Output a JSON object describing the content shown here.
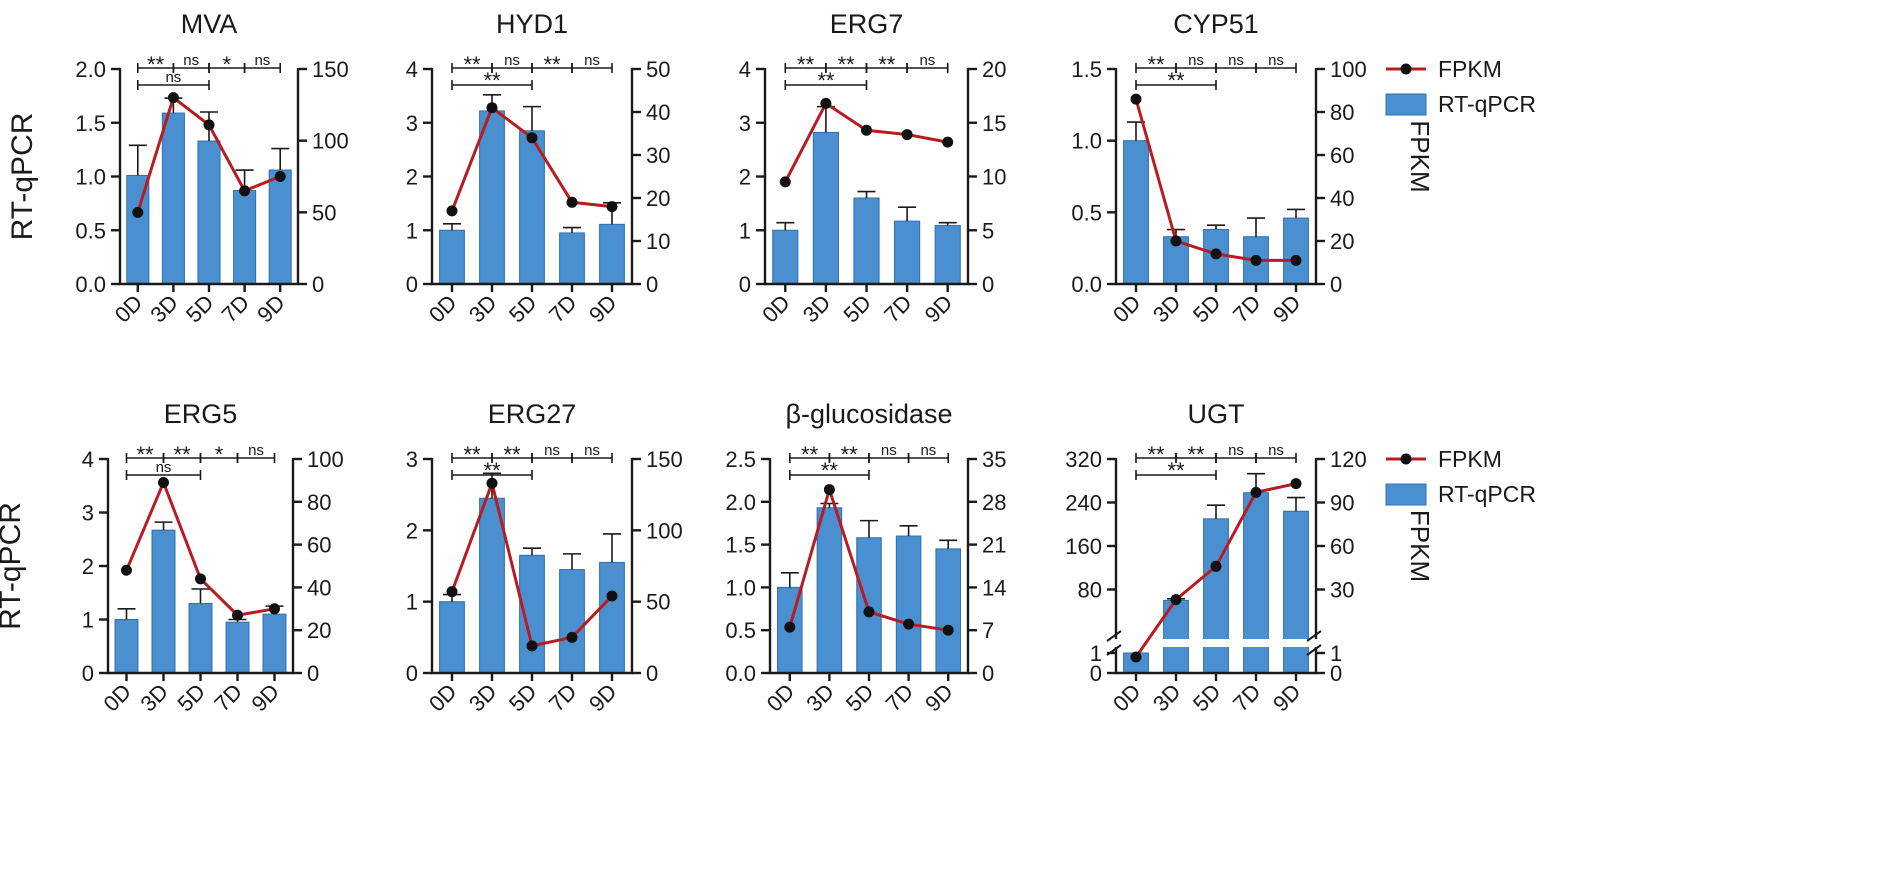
{
  "legend": {
    "line_label": "FPKM",
    "bar_label": "RT-qPCR",
    "line_color": "#b81c22",
    "bar_color": "#4a90d0"
  },
  "chart_data": [
    {
      "type": "bar+line",
      "title": "MVA",
      "categories": [
        "0D",
        "3D",
        "5D",
        "7D",
        "9D"
      ],
      "ylabel": "RT-qPCR",
      "ylabel_right": "",
      "ylim": [
        0,
        2.0
      ],
      "yticks": [
        0.0,
        0.5,
        1.0,
        1.5,
        2.0
      ],
      "ytick_labels": [
        "0.0",
        "0.5",
        "1.0",
        "1.5",
        "2.0"
      ],
      "ylim_right": [
        0,
        150
      ],
      "yticks_right": [
        0,
        50,
        100,
        150
      ],
      "ytick_labels_right": [
        "0",
        "50",
        "100",
        "150"
      ],
      "series": [
        {
          "name": "RT-qPCR",
          "kind": "bar",
          "axis": "left",
          "values": [
            1.01,
            1.59,
            1.33,
            0.87,
            1.06
          ],
          "errors": [
            0.28,
            0.14,
            0.27,
            0.19,
            0.2
          ]
        },
        {
          "name": "FPKM",
          "kind": "line",
          "axis": "right",
          "values": [
            50,
            130,
            111,
            65,
            75
          ]
        }
      ],
      "significance": {
        "top": [
          {
            "from": "0D",
            "to": "3D",
            "label": "**"
          },
          {
            "from": "3D",
            "to": "5D",
            "label": "ns"
          },
          {
            "from": "5D",
            "to": "7D",
            "label": "*"
          },
          {
            "from": "7D",
            "to": "9D",
            "label": "ns"
          }
        ],
        "bottom": {
          "from": "0D",
          "to": "5D",
          "label": "ns"
        }
      },
      "legend_shown": false
    },
    {
      "type": "bar+line",
      "title": "HYD1",
      "categories": [
        "0D",
        "3D",
        "5D",
        "7D",
        "9D"
      ],
      "ylabel": "",
      "ylabel_right": "",
      "ylim": [
        0,
        4
      ],
      "yticks": [
        0,
        1,
        2,
        3,
        4
      ],
      "ytick_labels": [
        "0",
        "1",
        "2",
        "3",
        "4"
      ],
      "ylim_right": [
        0,
        50
      ],
      "yticks_right": [
        0,
        10,
        20,
        30,
        40,
        50
      ],
      "ytick_labels_right": [
        "0",
        "10",
        "20",
        "30",
        "40",
        "50"
      ],
      "series": [
        {
          "name": "RT-qPCR",
          "kind": "bar",
          "axis": "left",
          "values": [
            1.0,
            3.22,
            2.85,
            0.95,
            1.11
          ],
          "errors": [
            0.12,
            0.3,
            0.45,
            0.1,
            0.4
          ]
        },
        {
          "name": "FPKM",
          "kind": "line",
          "axis": "right",
          "values": [
            17,
            41,
            34,
            19,
            18
          ]
        }
      ],
      "significance": {
        "top": [
          {
            "from": "0D",
            "to": "3D",
            "label": "**"
          },
          {
            "from": "3D",
            "to": "5D",
            "label": "ns"
          },
          {
            "from": "5D",
            "to": "7D",
            "label": "**"
          },
          {
            "from": "7D",
            "to": "9D",
            "label": "ns"
          }
        ],
        "bottom": {
          "from": "0D",
          "to": "5D",
          "label": "**"
        }
      },
      "legend_shown": false
    },
    {
      "type": "bar+line",
      "title": "ERG7",
      "categories": [
        "0D",
        "3D",
        "5D",
        "7D",
        "9D"
      ],
      "ylabel": "",
      "ylabel_right": "",
      "ylim": [
        0,
        4
      ],
      "yticks": [
        0,
        1,
        2,
        3,
        4
      ],
      "ytick_labels": [
        "0",
        "1",
        "2",
        "3",
        "4"
      ],
      "ylim_right": [
        0,
        20
      ],
      "yticks_right": [
        0,
        5,
        10,
        15,
        20
      ],
      "ytick_labels_right": [
        "0",
        "5",
        "10",
        "15",
        "20"
      ],
      "series": [
        {
          "name": "RT-qPCR",
          "kind": "bar",
          "axis": "left",
          "values": [
            1.0,
            2.82,
            1.6,
            1.17,
            1.09
          ],
          "errors": [
            0.14,
            0.48,
            0.12,
            0.26,
            0.05
          ]
        },
        {
          "name": "FPKM",
          "kind": "line",
          "axis": "right",
          "values": [
            9.5,
            16.8,
            14.3,
            13.9,
            13.2
          ]
        }
      ],
      "significance": {
        "top": [
          {
            "from": "0D",
            "to": "3D",
            "label": "**"
          },
          {
            "from": "3D",
            "to": "5D",
            "label": "**"
          },
          {
            "from": "5D",
            "to": "7D",
            "label": "**"
          },
          {
            "from": "7D",
            "to": "9D",
            "label": "ns"
          }
        ],
        "bottom": {
          "from": "0D",
          "to": "5D",
          "label": "**"
        }
      },
      "legend_shown": false
    },
    {
      "type": "bar+line",
      "title": "CYP51",
      "categories": [
        "0D",
        "3D",
        "5D",
        "7D",
        "9D"
      ],
      "ylabel": "",
      "ylabel_right": "FPKM",
      "ylim": [
        0,
        1.5
      ],
      "yticks": [
        0.0,
        0.5,
        1.0,
        1.5
      ],
      "ytick_labels": [
        "0.0",
        "0.5",
        "1.0",
        "1.5"
      ],
      "ylim_right": [
        0,
        100
      ],
      "yticks_right": [
        0,
        20,
        40,
        60,
        80,
        100
      ],
      "ytick_labels_right": [
        "0",
        "20",
        "40",
        "60",
        "80",
        "100"
      ],
      "series": [
        {
          "name": "RT-qPCR",
          "kind": "bar",
          "axis": "left",
          "values": [
            1.0,
            0.33,
            0.38,
            0.33,
            0.46
          ],
          "errors": [
            0.13,
            0.05,
            0.03,
            0.13,
            0.06
          ]
        },
        {
          "name": "FPKM",
          "kind": "line",
          "axis": "right",
          "values": [
            86,
            20,
            14,
            11,
            11
          ]
        }
      ],
      "significance": {
        "top": [
          {
            "from": "0D",
            "to": "3D",
            "label": "**"
          },
          {
            "from": "3D",
            "to": "5D",
            "label": "ns"
          },
          {
            "from": "5D",
            "to": "7D",
            "label": "ns"
          },
          {
            "from": "7D",
            "to": "9D",
            "label": "ns"
          }
        ],
        "bottom": {
          "from": "0D",
          "to": "5D",
          "label": "**"
        }
      },
      "legend_shown": true
    },
    {
      "type": "bar+line",
      "title": "ERG5",
      "categories": [
        "0D",
        "3D",
        "5D",
        "7D",
        "9D"
      ],
      "ylabel": "RT-qPCR",
      "ylabel_right": "",
      "ylim": [
        0,
        4
      ],
      "yticks": [
        0,
        1,
        2,
        3,
        4
      ],
      "ytick_labels": [
        "0",
        "1",
        "2",
        "3",
        "4"
      ],
      "ylim_right": [
        0,
        100
      ],
      "yticks_right": [
        0,
        20,
        40,
        60,
        80,
        100
      ],
      "ytick_labels_right": [
        "0",
        "20",
        "40",
        "60",
        "80",
        "100"
      ],
      "series": [
        {
          "name": "RT-qPCR",
          "kind": "bar",
          "axis": "left",
          "values": [
            1.0,
            2.67,
            1.3,
            0.95,
            1.1
          ],
          "errors": [
            0.2,
            0.15,
            0.27,
            0.05,
            0.15
          ]
        },
        {
          "name": "FPKM",
          "kind": "line",
          "axis": "right",
          "values": [
            48,
            89,
            44,
            27,
            30
          ]
        }
      ],
      "significance": {
        "top": [
          {
            "from": "0D",
            "to": "3D",
            "label": "**"
          },
          {
            "from": "3D",
            "to": "5D",
            "label": "**"
          },
          {
            "from": "5D",
            "to": "7D",
            "label": "*"
          },
          {
            "from": "7D",
            "to": "9D",
            "label": "ns"
          }
        ],
        "bottom": {
          "from": "0D",
          "to": "5D",
          "label": "ns"
        }
      },
      "legend_shown": false
    },
    {
      "type": "bar+line",
      "title": "ERG27",
      "categories": [
        "0D",
        "3D",
        "5D",
        "7D",
        "9D"
      ],
      "ylabel": "",
      "ylabel_right": "",
      "ylim": [
        0,
        3
      ],
      "yticks": [
        0,
        1,
        2,
        3
      ],
      "ytick_labels": [
        "0",
        "1",
        "2",
        "3"
      ],
      "ylim_right": [
        0,
        150
      ],
      "yticks_right": [
        0,
        50,
        100,
        150
      ],
      "ytick_labels_right": [
        "0",
        "50",
        "100",
        "150"
      ],
      "series": [
        {
          "name": "RT-qPCR",
          "kind": "bar",
          "axis": "left",
          "values": [
            1.0,
            2.45,
            1.65,
            1.45,
            1.55
          ],
          "errors": [
            0.1,
            0.35,
            0.1,
            0.22,
            0.4
          ]
        },
        {
          "name": "FPKM",
          "kind": "line",
          "axis": "right",
          "values": [
            57,
            133,
            19,
            25,
            54
          ]
        }
      ],
      "significance": {
        "top": [
          {
            "from": "0D",
            "to": "3D",
            "label": "**"
          },
          {
            "from": "3D",
            "to": "5D",
            "label": "**"
          },
          {
            "from": "5D",
            "to": "7D",
            "label": "ns"
          },
          {
            "from": "7D",
            "to": "9D",
            "label": "ns"
          }
        ],
        "bottom": {
          "from": "0D",
          "to": "5D",
          "label": "**"
        }
      },
      "legend_shown": false
    },
    {
      "type": "bar+line",
      "title": "β-glucosidase",
      "categories": [
        "0D",
        "3D",
        "5D",
        "7D",
        "9D"
      ],
      "ylabel": "",
      "ylabel_right": "",
      "ylim": [
        0,
        2.5
      ],
      "yticks": [
        0.0,
        0.5,
        1.0,
        1.5,
        2.0,
        2.5
      ],
      "ytick_labels": [
        "0.0",
        "0.5",
        "1.0",
        "1.5",
        "2.0",
        "2.5"
      ],
      "ylim_right": [
        0,
        35
      ],
      "yticks_right": [
        0,
        7,
        14,
        21,
        28,
        35
      ],
      "ytick_labels_right": [
        "0",
        "7",
        "14",
        "21",
        "28",
        "35"
      ],
      "series": [
        {
          "name": "RT-qPCR",
          "kind": "bar",
          "axis": "left",
          "values": [
            1.0,
            1.93,
            1.58,
            1.6,
            1.45
          ],
          "errors": [
            0.17,
            0.05,
            0.2,
            0.12,
            0.1
          ]
        },
        {
          "name": "FPKM",
          "kind": "line",
          "axis": "right",
          "values": [
            7.5,
            30,
            10,
            8,
            7
          ]
        }
      ],
      "significance": {
        "top": [
          {
            "from": "0D",
            "to": "3D",
            "label": "**"
          },
          {
            "from": "3D",
            "to": "5D",
            "label": "**"
          },
          {
            "from": "5D",
            "to": "7D",
            "label": "ns"
          },
          {
            "from": "7D",
            "to": "9D",
            "label": "ns"
          }
        ],
        "bottom": {
          "from": "0D",
          "to": "5D",
          "label": "**"
        }
      },
      "legend_shown": false
    },
    {
      "type": "bar+line",
      "title": "UGT",
      "categories": [
        "0D",
        "3D",
        "5D",
        "7D",
        "9D"
      ],
      "ylabel": "",
      "ylabel_right": "FPKM",
      "axis_break": true,
      "ylim": [
        0,
        320
      ],
      "yticks": [
        0,
        1,
        80,
        160,
        240,
        320
      ],
      "ytick_labels": [
        "0",
        "1",
        "80",
        "160",
        "240",
        "320"
      ],
      "ylim_right": [
        0,
        120
      ],
      "yticks_right": [
        0,
        1,
        30,
        60,
        90,
        120
      ],
      "ytick_labels_right": [
        "0",
        "1",
        "30",
        "60",
        "90",
        "120"
      ],
      "series": [
        {
          "name": "RT-qPCR",
          "kind": "bar",
          "axis": "left",
          "values": [
            1,
            60,
            210,
            258,
            224
          ],
          "errors": [
            0,
            3,
            25,
            35,
            25
          ]
        },
        {
          "name": "FPKM",
          "kind": "line",
          "axis": "right",
          "values": [
            0.8,
            23,
            46,
            97,
            103
          ]
        }
      ],
      "significance": {
        "top": [
          {
            "from": "0D",
            "to": "3D",
            "label": "**"
          },
          {
            "from": "3D",
            "to": "5D",
            "label": "**"
          },
          {
            "from": "5D",
            "to": "7D",
            "label": "ns"
          },
          {
            "from": "7D",
            "to": "9D",
            "label": "ns"
          }
        ],
        "bottom": {
          "from": "0D",
          "to": "5D",
          "label": "**"
        }
      },
      "legend_shown": true
    }
  ]
}
